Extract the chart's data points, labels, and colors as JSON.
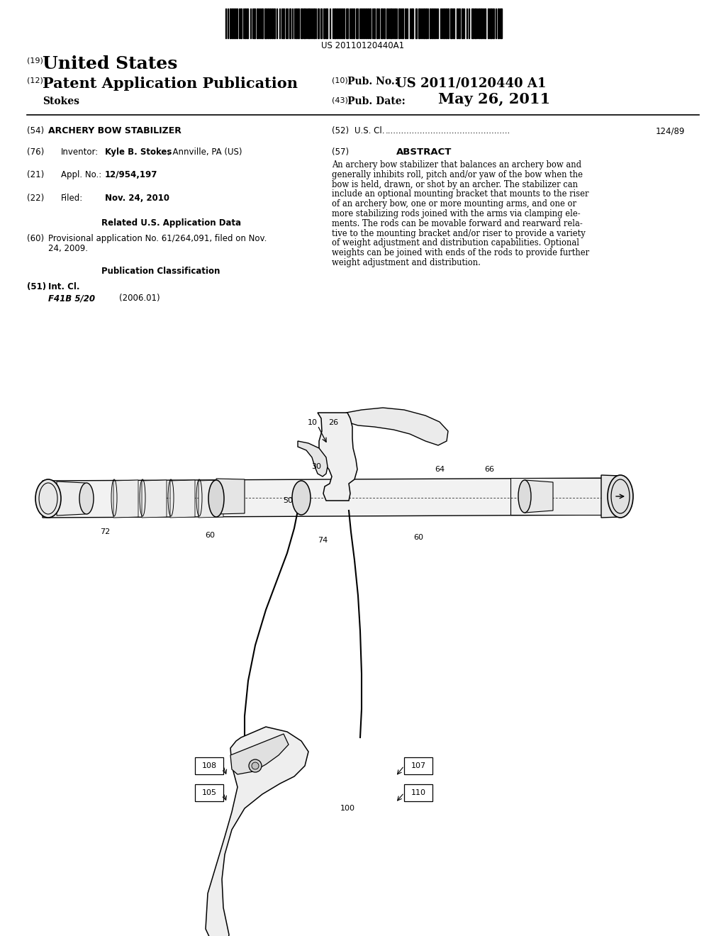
{
  "bg": "#ffffff",
  "barcode_text": "US 20110120440A1",
  "abstract_lines": [
    "An archery bow stabilizer that balances an archery bow and",
    "generally inhibits roll, pitch and/or yaw of the bow when the",
    "bow is held, drawn, or shot by an archer. The stabilizer can",
    "include an optional mounting bracket that mounts to the riser",
    "of an archery bow, one or more mounting arms, and one or",
    "more stabilizing rods joined with the arms via clamping ele-",
    "ments. The rods can be movable forward and rearward rela-",
    "tive to the mounting bracket and/or riser to provide a variety",
    "of weight adjustment and distribution capabilities. Optional",
    "weights can be joined with ends of the rods to provide further",
    "weight adjustment and distribution."
  ],
  "prov_lines": [
    "Provisional application No. 61/264,091, filed on Nov.",
    "24, 2009."
  ]
}
